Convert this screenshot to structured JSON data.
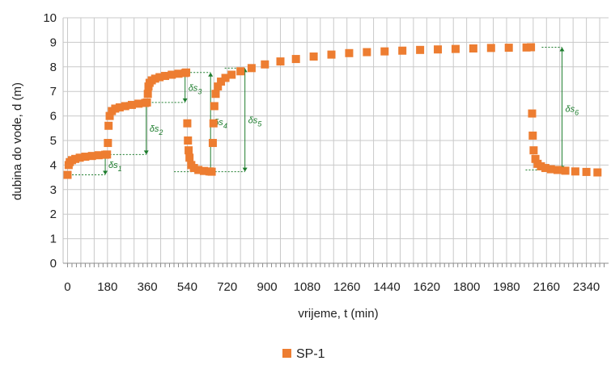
{
  "chart_data": {
    "type": "scatter",
    "xlabel": "vrijeme, t (min)",
    "ylabel": "dubina do vode, d (m)",
    "xlim": [
      -20,
      2440
    ],
    "ylim": [
      0,
      10
    ],
    "xticks": [
      0,
      180,
      360,
      540,
      720,
      900,
      1080,
      1260,
      1440,
      1620,
      1800,
      1980,
      2160,
      2340
    ],
    "yticks": [
      0,
      1,
      2,
      3,
      4,
      5,
      6,
      7,
      8,
      9,
      10
    ],
    "grid": true,
    "legend_position": "bottom-center",
    "series": [
      {
        "name": "SP-1",
        "color": "#ed7d31",
        "marker": "square",
        "x": [
          0,
          5,
          10,
          20,
          35,
          55,
          80,
          110,
          140,
          170,
          178,
          182,
          185,
          190,
          200,
          215,
          235,
          260,
          290,
          320,
          350,
          358,
          362,
          365,
          370,
          380,
          395,
          415,
          440,
          470,
          500,
          530,
          535,
          540,
          543,
          546,
          550,
          558,
          570,
          590,
          615,
          640,
          650,
          655,
          658,
          662,
          668,
          678,
          692,
          712,
          740,
          780,
          830,
          890,
          960,
          1030,
          1110,
          1190,
          1270,
          1350,
          1430,
          1510,
          1590,
          1670,
          1750,
          1830,
          1910,
          1990,
          2070,
          2090,
          2095,
          2098,
          2102,
          2110,
          2120,
          2135,
          2155,
          2180,
          2210,
          2245,
          2290,
          2340,
          2390
        ],
        "y": [
          3.6,
          4.0,
          4.12,
          4.2,
          4.25,
          4.3,
          4.34,
          4.37,
          4.4,
          4.42,
          4.43,
          4.9,
          5.6,
          6.0,
          6.2,
          6.3,
          6.35,
          6.4,
          6.45,
          6.5,
          6.53,
          6.55,
          6.9,
          7.2,
          7.35,
          7.45,
          7.52,
          7.58,
          7.63,
          7.68,
          7.72,
          7.75,
          7.77,
          5.7,
          5.0,
          4.6,
          4.3,
          4.0,
          3.88,
          3.8,
          3.76,
          3.74,
          3.73,
          4.9,
          5.7,
          6.4,
          6.9,
          7.2,
          7.4,
          7.55,
          7.68,
          7.82,
          7.95,
          8.1,
          8.22,
          8.32,
          8.42,
          8.5,
          8.56,
          8.6,
          8.63,
          8.66,
          8.69,
          8.71,
          8.73,
          8.75,
          8.77,
          8.78,
          8.79,
          8.8,
          6.1,
          5.2,
          4.6,
          4.25,
          4.05,
          3.95,
          3.88,
          3.83,
          3.8,
          3.77,
          3.74,
          3.72,
          3.7
        ]
      }
    ],
    "annotations": [
      {
        "label_base": "δs",
        "label_sub": "1",
        "x": 170,
        "y_low": 3.6,
        "y_high": 4.43
      },
      {
        "label_base": "δs",
        "label_sub": "2",
        "x": 355,
        "y_low": 4.43,
        "y_high": 6.55
      },
      {
        "label_base": "δs",
        "label_sub": "3",
        "x": 530,
        "y_low": 6.55,
        "y_high": 7.77
      },
      {
        "label_base": "δs",
        "label_sub": "4",
        "x": 645,
        "y_low": 3.73,
        "y_high": 7.77
      },
      {
        "label_base": "δs",
        "label_sub": "5",
        "x": 800,
        "y_low": 3.73,
        "y_high": 7.95
      },
      {
        "label_base": "δs",
        "label_sub": "6",
        "x": 2230,
        "y_low": 3.8,
        "y_high": 8.8
      }
    ]
  }
}
